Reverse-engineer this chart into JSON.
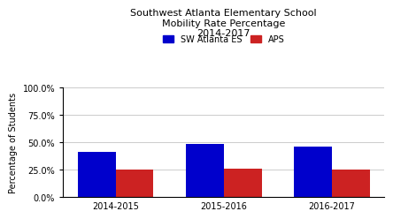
{
  "title": "Southwest Atlanta Elementary School\nMobility Rate Percentage\n2014-2017",
  "ylabel": "Percentage of Students",
  "categories": [
    "2014-2015",
    "2015-2016",
    "2016-2017"
  ],
  "sw_atlanta_values": [
    0.41,
    0.485,
    0.455
  ],
  "aps_values": [
    0.25,
    0.257,
    0.251
  ],
  "sw_color": "#0000CC",
  "aps_color": "#CC2222",
  "legend_labels": [
    "SW Atlanta ES",
    "APS"
  ],
  "ylim": [
    0.0,
    1.0
  ],
  "yticks": [
    0.0,
    0.25,
    0.5,
    0.75,
    1.0
  ],
  "ytick_labels": [
    "0.0%",
    "25.0%",
    "50.0%",
    "75.0%",
    "100.0%"
  ],
  "background_color": "#ffffff",
  "plot_background_color": "#ffffff",
  "bar_width": 0.35,
  "title_fontsize": 8,
  "label_fontsize": 7,
  "tick_fontsize": 7,
  "legend_fontsize": 7,
  "grid_color": "#cccccc"
}
